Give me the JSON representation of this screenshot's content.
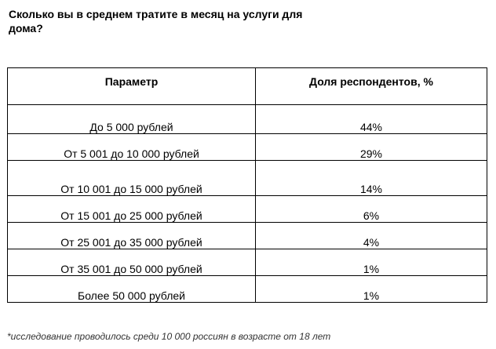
{
  "title": "Сколько вы в среднем тратите в месяц на услуги для дома?",
  "table": {
    "headers": [
      "Параметр",
      "Доля респондентов, %"
    ],
    "rows": [
      {
        "param": "До 5 000 рублей",
        "share": "44%"
      },
      {
        "param": "От 5 001 до 10 000 рублей",
        "share": "29%"
      },
      {
        "param": "От 10 001 до 15 000 рублей",
        "share": "14%"
      },
      {
        "param": "От 15 001 до 25 000 рублей",
        "share": "6%"
      },
      {
        "param": "От 25 001 до 35 000 рублей",
        "share": "4%"
      },
      {
        "param": "От 35 001 до 50 000 рублей",
        "share": "1%"
      },
      {
        "param": "Более 50 000 рублей",
        "share": "1%"
      }
    ]
  },
  "footnote": "*исследование проводилось среди 10 000 россиян в возрасте от 18 лет"
}
